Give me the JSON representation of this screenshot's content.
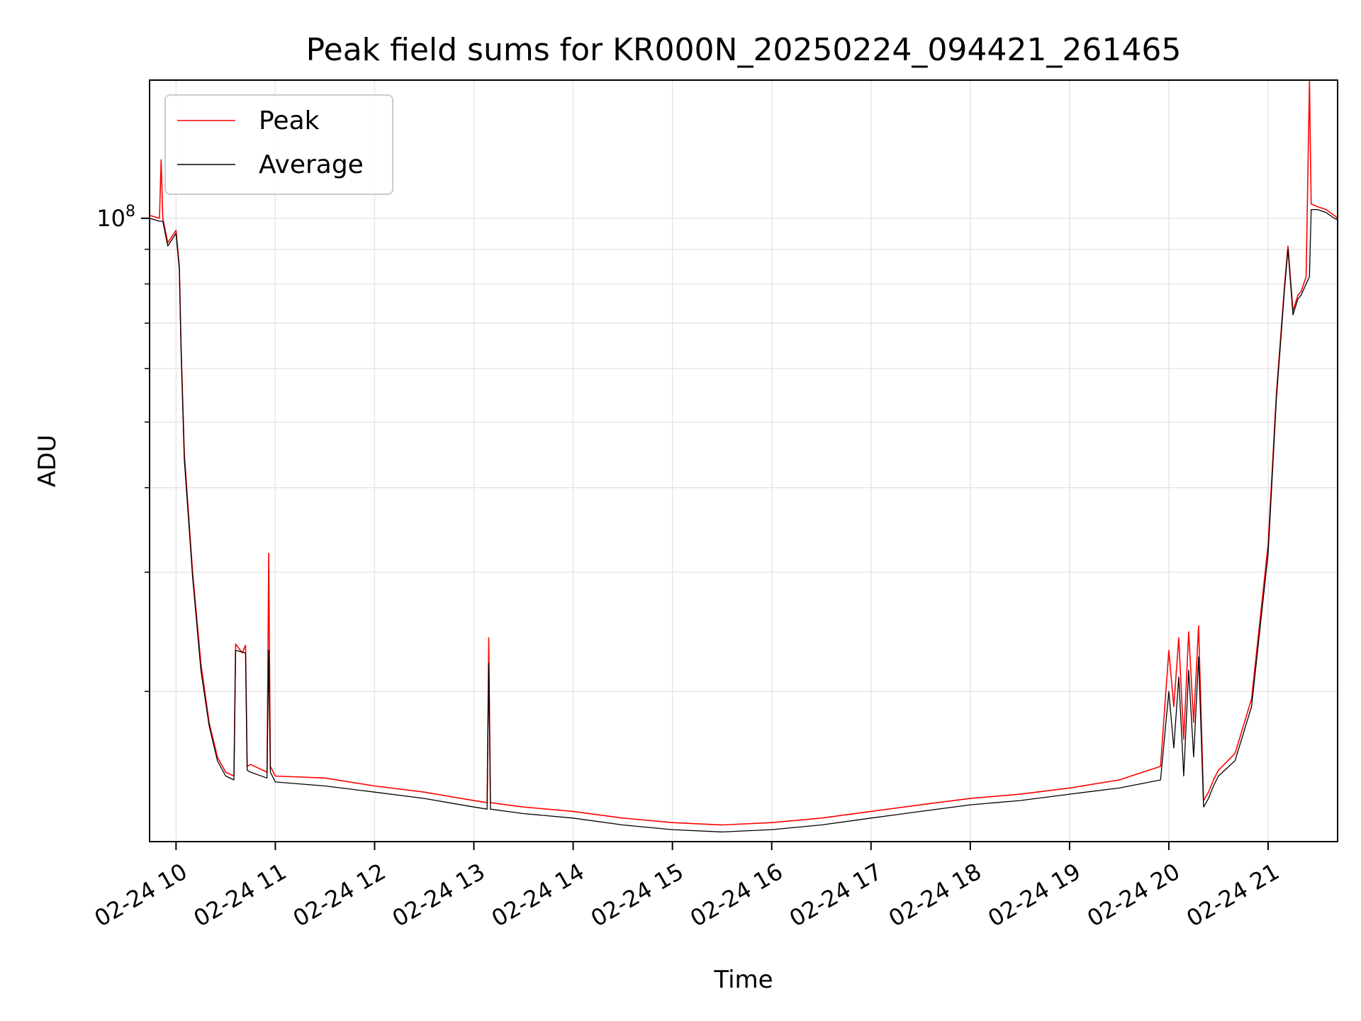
{
  "chart_data": {
    "type": "line",
    "title": "Peak field sums for KR000N_20250224_094421_261465",
    "xlabel": "Time",
    "ylabel": "ADU",
    "y_scale": "log",
    "ylim": [
      12000000,
      160000000
    ],
    "xlim": [
      "2025-02-24 09:44",
      "2025-02-24 21:42"
    ],
    "grid": true,
    "legend": "top-left",
    "x_tick_labels": [
      "02-24 10",
      "02-24 11",
      "02-24 12",
      "02-24 13",
      "02-24 14",
      "02-24 15",
      "02-24 16",
      "02-24 17",
      "02-24 18",
      "02-24 19",
      "02-24 20",
      "02-24 21"
    ],
    "x_ticks": [
      "2025-02-24 10:00",
      "2025-02-24 11:00",
      "2025-02-24 12:00",
      "2025-02-24 13:00",
      "2025-02-24 14:00",
      "2025-02-24 15:00",
      "2025-02-24 16:00",
      "2025-02-24 17:00",
      "2025-02-24 18:00",
      "2025-02-24 19:00",
      "2025-02-24 20:00",
      "2025-02-24 21:00"
    ],
    "y_major_ticks": [
      {
        "value": 100000000,
        "base": "10",
        "exp": "8"
      }
    ],
    "y_minor_ticks": [
      20000000,
      30000000,
      40000000,
      50000000,
      60000000,
      70000000,
      80000000,
      90000000
    ],
    "series": [
      {
        "name": "Peak",
        "color": "#ff0000",
        "x": [
          "2025-02-24 09:44",
          "2025-02-24 09:50",
          "2025-02-24 09:51",
          "2025-02-24 09:52",
          "2025-02-24 09:55",
          "2025-02-24 10:00",
          "2025-02-24 10:02",
          "2025-02-24 10:03",
          "2025-02-24 10:05",
          "2025-02-24 10:10",
          "2025-02-24 10:15",
          "2025-02-24 10:20",
          "2025-02-24 10:25",
          "2025-02-24 10:30",
          "2025-02-24 10:35",
          "2025-02-24 10:36",
          "2025-02-24 10:40",
          "2025-02-24 10:42",
          "2025-02-24 10:43",
          "2025-02-24 10:45",
          "2025-02-24 10:55",
          "2025-02-24 10:56",
          "2025-02-24 10:57",
          "2025-02-24 11:00",
          "2025-02-24 11:30",
          "2025-02-24 12:00",
          "2025-02-24 12:30",
          "2025-02-24 13:00",
          "2025-02-24 13:08",
          "2025-02-24 13:09",
          "2025-02-24 13:10",
          "2025-02-24 13:30",
          "2025-02-24 14:00",
          "2025-02-24 14:30",
          "2025-02-24 15:00",
          "2025-02-24 15:30",
          "2025-02-24 16:00",
          "2025-02-24 16:30",
          "2025-02-24 17:00",
          "2025-02-24 17:30",
          "2025-02-24 18:00",
          "2025-02-24 18:30",
          "2025-02-24 19:00",
          "2025-02-24 19:30",
          "2025-02-24 19:55",
          "2025-02-24 20:00",
          "2025-02-24 20:03",
          "2025-02-24 20:06",
          "2025-02-24 20:09",
          "2025-02-24 20:12",
          "2025-02-24 20:15",
          "2025-02-24 20:18",
          "2025-02-24 20:21",
          "2025-02-24 20:24",
          "2025-02-24 20:27",
          "2025-02-24 20:30",
          "2025-02-24 20:40",
          "2025-02-24 20:50",
          "2025-02-24 21:00",
          "2025-02-24 21:05",
          "2025-02-24 21:10",
          "2025-02-24 21:12",
          "2025-02-24 21:15",
          "2025-02-24 21:18",
          "2025-02-24 21:20",
          "2025-02-24 21:23",
          "2025-02-24 21:25",
          "2025-02-24 21:26",
          "2025-02-24 21:30",
          "2025-02-24 21:35",
          "2025-02-24 21:40",
          "2025-02-24 21:42"
        ],
        "y": [
          101000000,
          100000000,
          122000000,
          100000000,
          92000000,
          96000000,
          85000000,
          65000000,
          45000000,
          30000000,
          22000000,
          18000000,
          16000000,
          15200000,
          15000000,
          23500000,
          22800000,
          23400000,
          15500000,
          15600000,
          15200000,
          32000000,
          15500000,
          15000000,
          14900000,
          14500000,
          14200000,
          13800000,
          13700000,
          24000000,
          13700000,
          13500000,
          13300000,
          13000000,
          12800000,
          12700000,
          12800000,
          13000000,
          13300000,
          13600000,
          13900000,
          14100000,
          14400000,
          14800000,
          15500000,
          23000000,
          19000000,
          24000000,
          17000000,
          24500000,
          18000000,
          25000000,
          13800000,
          14200000,
          14800000,
          15300000,
          16200000,
          19500000,
          33000000,
          55000000,
          80000000,
          91000000,
          73000000,
          77000000,
          78000000,
          82000000,
          160000000,
          105000000,
          104000000,
          103000000,
          101000000,
          100000000
        ]
      },
      {
        "name": "Average",
        "color": "#000000",
        "x": [
          "2025-02-24 09:44",
          "2025-02-24 09:50",
          "2025-02-24 09:52",
          "2025-02-24 09:55",
          "2025-02-24 10:00",
          "2025-02-24 10:02",
          "2025-02-24 10:03",
          "2025-02-24 10:05",
          "2025-02-24 10:10",
          "2025-02-24 10:15",
          "2025-02-24 10:20",
          "2025-02-24 10:25",
          "2025-02-24 10:30",
          "2025-02-24 10:35",
          "2025-02-24 10:36",
          "2025-02-24 10:42",
          "2025-02-24 10:43",
          "2025-02-24 10:45",
          "2025-02-24 10:55",
          "2025-02-24 10:56",
          "2025-02-24 10:57",
          "2025-02-24 11:00",
          "2025-02-24 11:30",
          "2025-02-24 12:00",
          "2025-02-24 12:30",
          "2025-02-24 13:00",
          "2025-02-24 13:08",
          "2025-02-24 13:09",
          "2025-02-24 13:10",
          "2025-02-24 13:30",
          "2025-02-24 14:00",
          "2025-02-24 14:30",
          "2025-02-24 15:00",
          "2025-02-24 15:30",
          "2025-02-24 16:00",
          "2025-02-24 16:30",
          "2025-02-24 17:00",
          "2025-02-24 17:30",
          "2025-02-24 18:00",
          "2025-02-24 18:30",
          "2025-02-24 19:00",
          "2025-02-24 19:30",
          "2025-02-24 19:55",
          "2025-02-24 20:00",
          "2025-02-24 20:03",
          "2025-02-24 20:06",
          "2025-02-24 20:09",
          "2025-02-24 20:12",
          "2025-02-24 20:15",
          "2025-02-24 20:18",
          "2025-02-24 20:21",
          "2025-02-24 20:24",
          "2025-02-24 20:27",
          "2025-02-24 20:30",
          "2025-02-24 20:40",
          "2025-02-24 20:50",
          "2025-02-24 21:00",
          "2025-02-24 21:05",
          "2025-02-24 21:10",
          "2025-02-24 21:12",
          "2025-02-24 21:15",
          "2025-02-24 21:18",
          "2025-02-24 21:20",
          "2025-02-24 21:23",
          "2025-02-24 21:25",
          "2025-02-24 21:26",
          "2025-02-24 21:30",
          "2025-02-24 21:35",
          "2025-02-24 21:40",
          "2025-02-24 21:42"
        ],
        "y": [
          100000000,
          99000000,
          99000000,
          91000000,
          95000000,
          84000000,
          64000000,
          44000000,
          29500000,
          21500000,
          17800000,
          15800000,
          15000000,
          14800000,
          23000000,
          22800000,
          15300000,
          15200000,
          14900000,
          23000000,
          15200000,
          14700000,
          14500000,
          14200000,
          13900000,
          13500000,
          13400000,
          22000000,
          13400000,
          13200000,
          13000000,
          12700000,
          12500000,
          12400000,
          12500000,
          12700000,
          13000000,
          13300000,
          13600000,
          13800000,
          14100000,
          14400000,
          14800000,
          20000000,
          16500000,
          21000000,
          15000000,
          21500000,
          16000000,
          22500000,
          13500000,
          13900000,
          14500000,
          15000000,
          15800000,
          19000000,
          32000000,
          54000000,
          79000000,
          90000000,
          72000000,
          76000000,
          77000000,
          80000000,
          82000000,
          103000000,
          103000000,
          102000000,
          100000000,
          99500000
        ]
      }
    ]
  }
}
